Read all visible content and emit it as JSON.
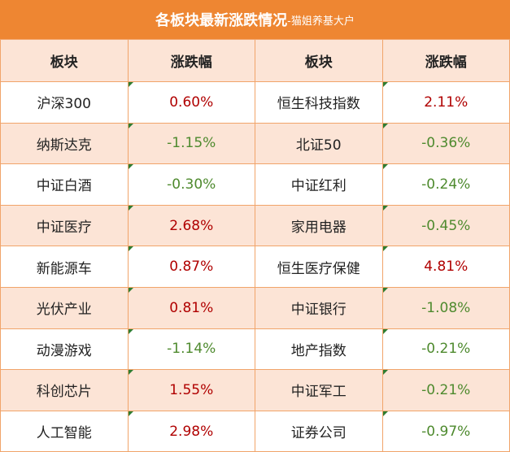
{
  "header": {
    "title": "各板块最新涨跌情况",
    "subtitle": "-猫姐养基大户"
  },
  "table": {
    "columns": [
      "板块",
      "涨跌幅",
      "板块",
      "涨跌幅"
    ],
    "rows": [
      [
        "沪深300",
        "0.60%",
        "恒生科技指数",
        "2.11%"
      ],
      [
        "纳斯达克",
        "-1.15%",
        "北证50",
        "-0.36%"
      ],
      [
        "中证白酒",
        "-0.30%",
        "中证红利",
        "-0.24%"
      ],
      [
        "中证医疗",
        "2.68%",
        "家用电器",
        "-0.45%"
      ],
      [
        "新能源车",
        "0.87%",
        "恒生医疗保健",
        "4.81%"
      ],
      [
        "光伏产业",
        "0.81%",
        "中证银行",
        "-1.08%"
      ],
      [
        "动漫游戏",
        "-1.14%",
        "地产指数",
        "-0.21%"
      ],
      [
        "科创芯片",
        "1.55%",
        "中证军工",
        "-0.21%"
      ],
      [
        "人工智能",
        "2.98%",
        "证券公司",
        "-0.97%"
      ]
    ]
  }
}
